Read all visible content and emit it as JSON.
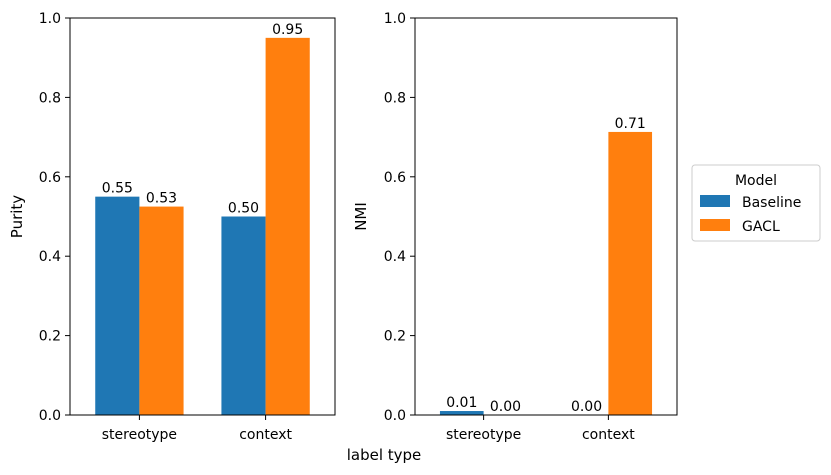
{
  "chart_data": [
    {
      "type": "bar",
      "categories": [
        "stereotype",
        "context"
      ],
      "ylabel": "Purity",
      "ylim": [
        0,
        1.0
      ],
      "yticks": [
        "0.0",
        "0.2",
        "0.4",
        "0.6",
        "0.8",
        "1.0"
      ],
      "series": [
        {
          "name": "Baseline",
          "values": [
            0.55,
            0.5
          ],
          "labels": [
            "0.55",
            "0.50"
          ]
        },
        {
          "name": "GACL",
          "values": [
            0.525,
            0.95
          ],
          "labels": [
            "0.53",
            "0.95"
          ]
        }
      ]
    },
    {
      "type": "bar",
      "categories": [
        "stereotype",
        "context"
      ],
      "ylabel": "NMI",
      "ylim": [
        0,
        1.0
      ],
      "yticks": [
        "0.0",
        "0.2",
        "0.4",
        "0.6",
        "0.8",
        "1.0"
      ],
      "series": [
        {
          "name": "Baseline",
          "values": [
            0.01,
            0.0
          ],
          "labels": [
            "0.01",
            "0.00"
          ]
        },
        {
          "name": "GACL",
          "values": [
            0.0,
            0.713
          ],
          "labels": [
            "0.00",
            "0.71"
          ]
        }
      ]
    }
  ],
  "shared_xlabel": "label type",
  "legend": {
    "title": "Model",
    "placement": "right",
    "entries": [
      {
        "name": "Baseline",
        "color": "#1f77b4"
      },
      {
        "name": "GACL",
        "color": "#ff7f0e"
      }
    ]
  },
  "colors": {
    "Baseline": "#1f77b4",
    "GACL": "#ff7f0e"
  }
}
